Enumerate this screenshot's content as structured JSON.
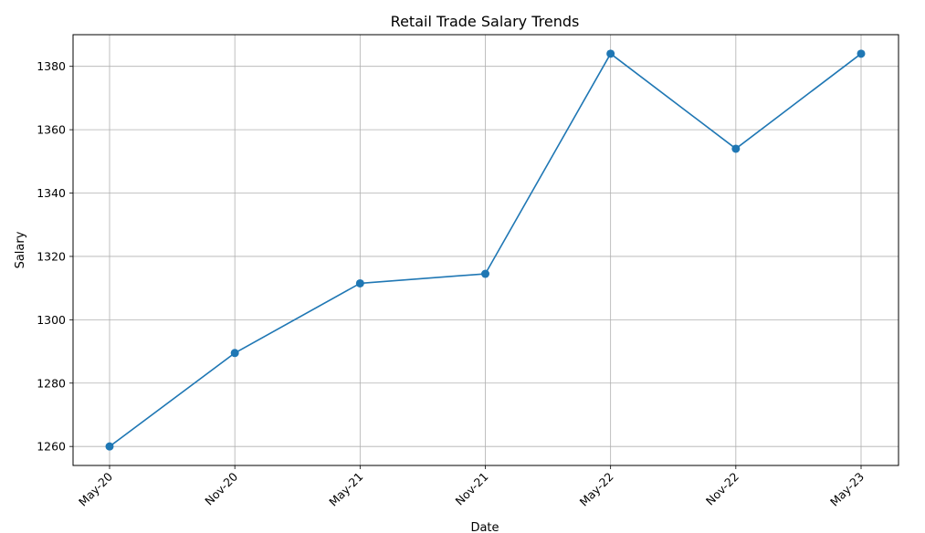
{
  "chart_data": {
    "type": "line",
    "title": "Retail Trade Salary Trends",
    "xlabel": "Date",
    "ylabel": "Salary",
    "categories": [
      "May-20",
      "Nov-20",
      "May-21",
      "Nov-21",
      "May-22",
      "Nov-22",
      "May-23"
    ],
    "series": [
      {
        "values": [
          1260,
          1289.5,
          1311.5,
          1314.5,
          1384,
          1354,
          1384
        ],
        "color": "#1f77b4",
        "marker": "circle"
      }
    ],
    "ylim": [
      1254,
      1390
    ],
    "yticks": [
      1260,
      1280,
      1300,
      1320,
      1340,
      1360,
      1380
    ],
    "grid": true,
    "x_tick_rotation": 45
  }
}
